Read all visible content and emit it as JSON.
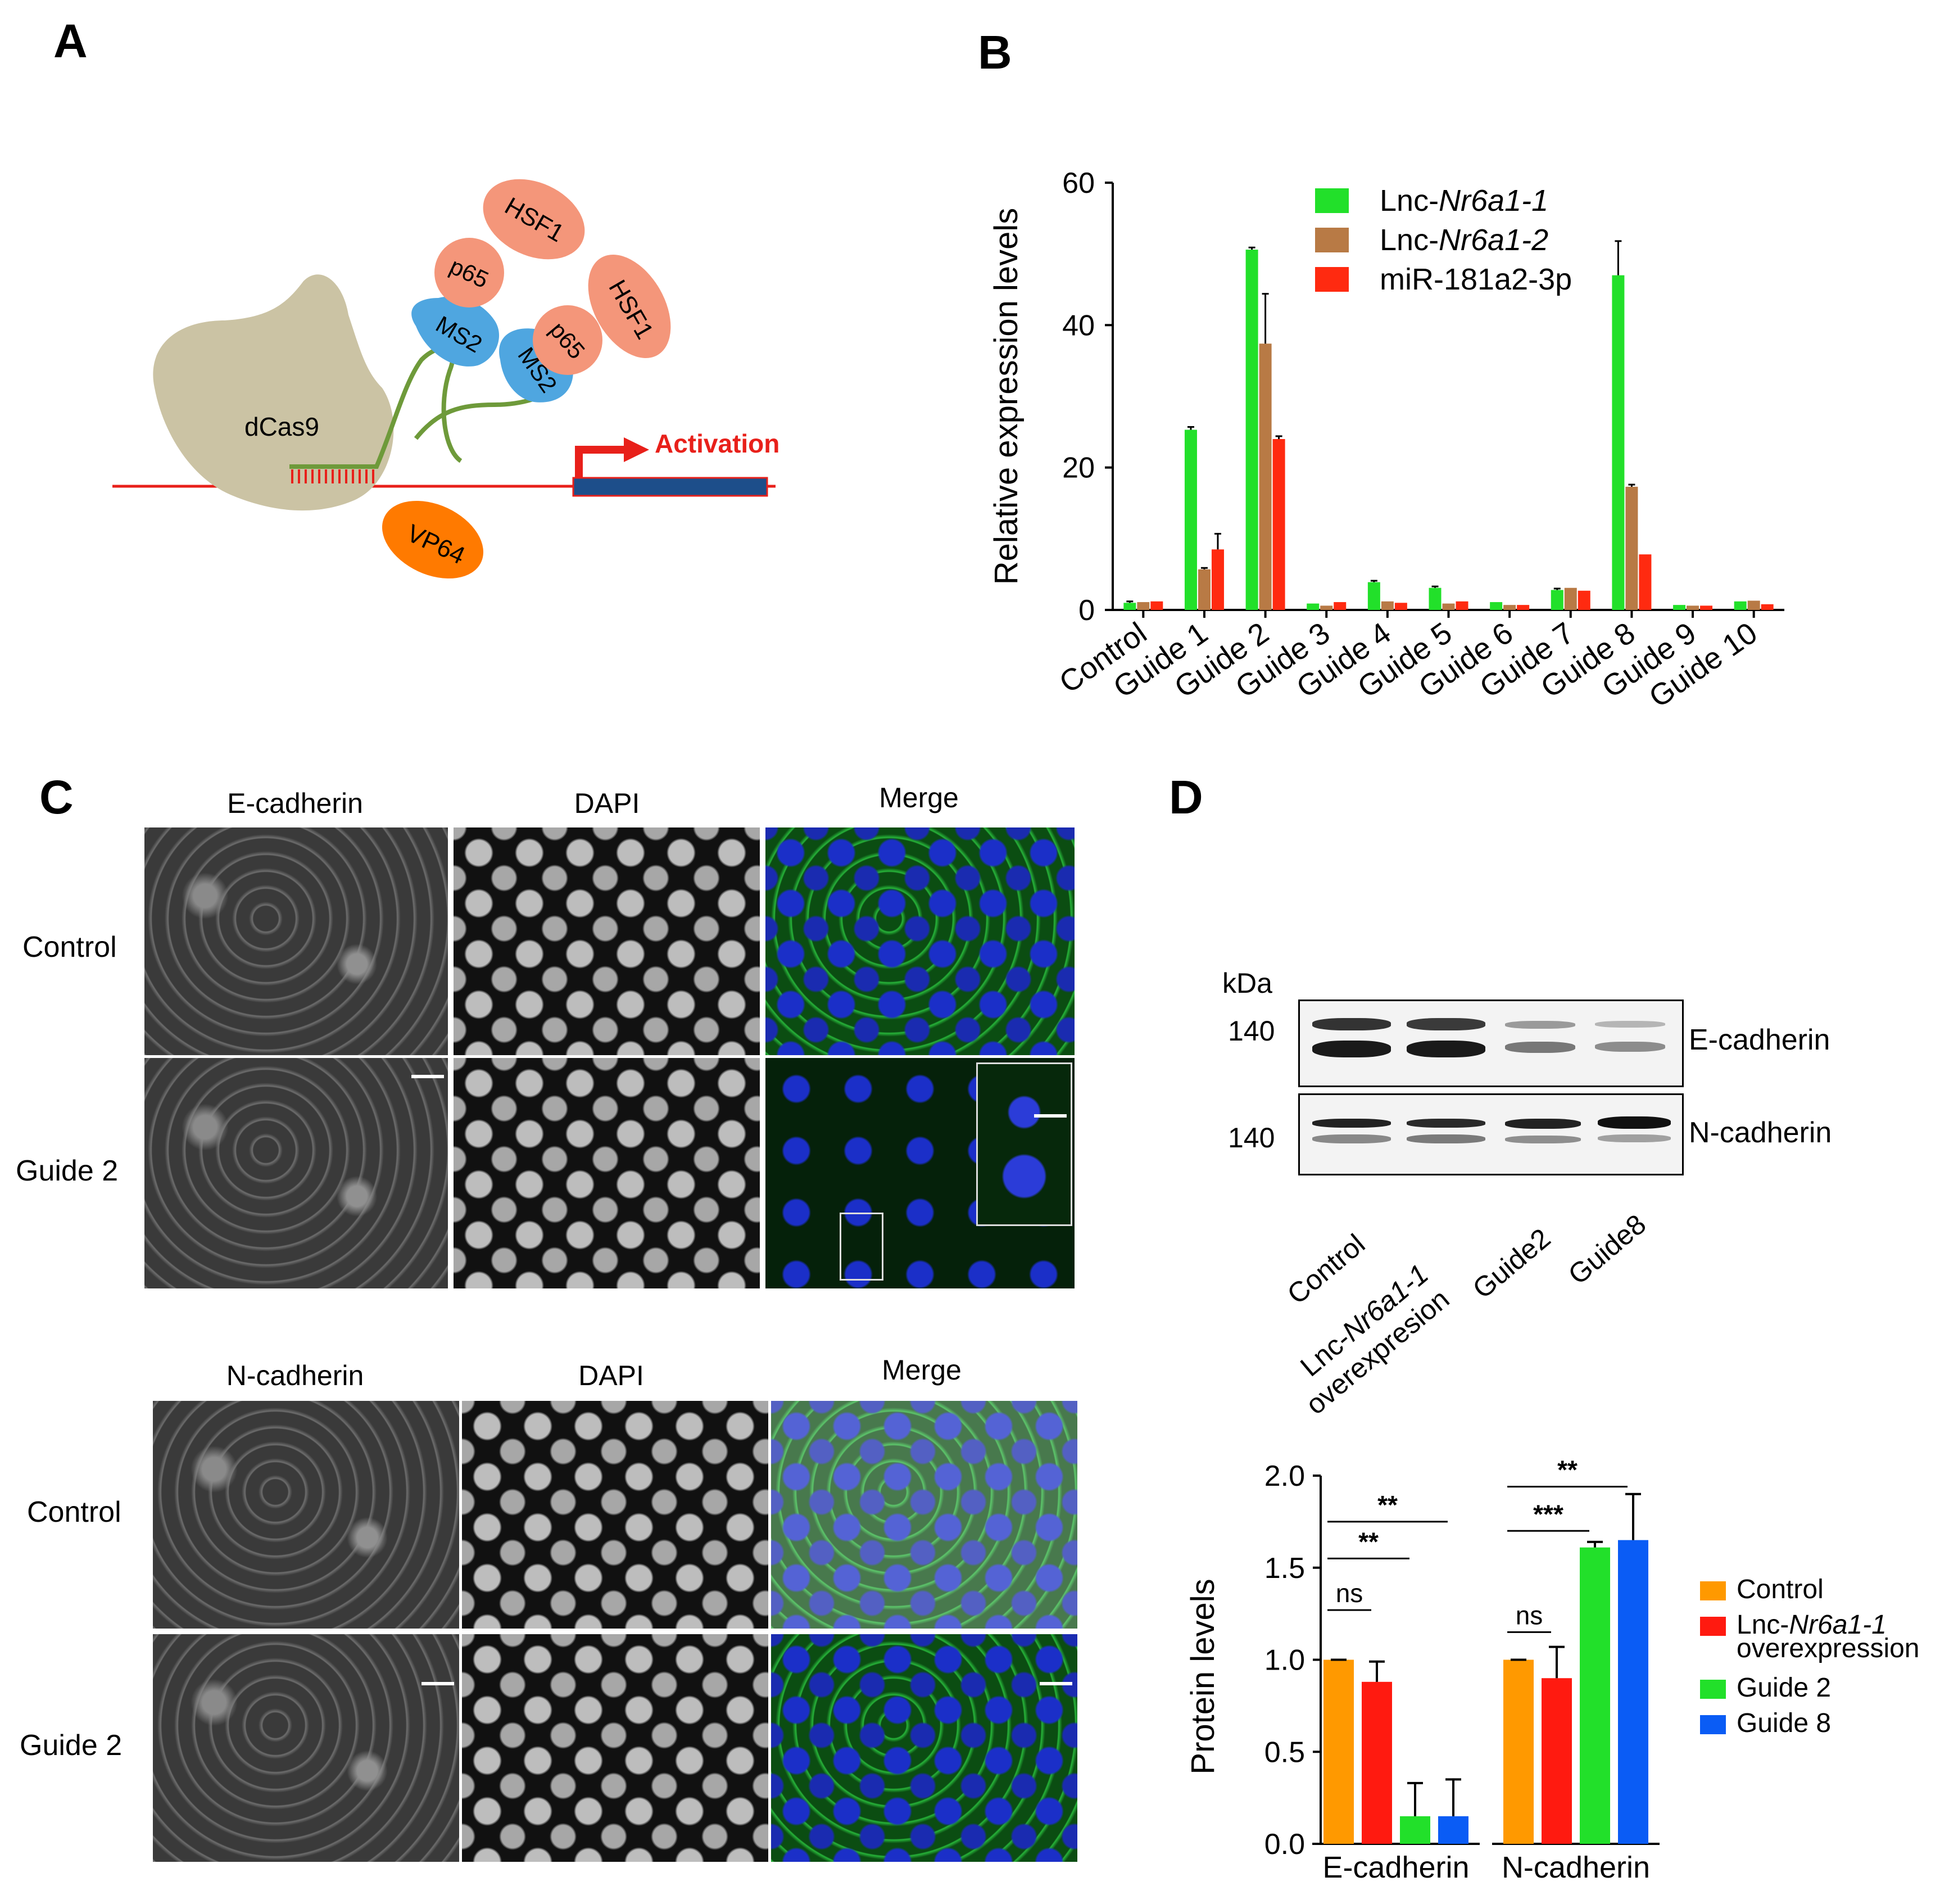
{
  "panels": {
    "a": "A",
    "b": "B",
    "c": "C",
    "d": "D"
  },
  "panel_a": {
    "dcas9": "dCas9",
    "vp64": "VP64",
    "hsf1_left": "HSF1",
    "hsf1_right": "HSF1",
    "p65_left": "p65",
    "p65_right": "p65",
    "ms2_left": "MS2",
    "ms2_right": "MS2",
    "activation": "Activation"
  },
  "panel_c": {
    "top_headers": [
      "E-cadherin",
      "DAPI",
      "Merge"
    ],
    "bottom_headers": [
      "N-cadherin",
      "DAPI",
      "Merge"
    ],
    "top_rows": [
      "Control",
      "Guide 2"
    ],
    "bottom_rows": [
      "Control",
      "Guide 2"
    ]
  },
  "panel_d_blot": {
    "kda": "kDa",
    "marker_top": "140",
    "marker_bottom": "140",
    "label_top": "E-cadherin",
    "label_bottom": "N-cadherin",
    "lanes": [
      "Control",
      "Lnc-Nr6a1-1 overexpresion",
      "Guide2",
      "Guide8"
    ],
    "lane2_line1_prefix": "Lnc-",
    "lane2_line1_italic": "Nr6a1-1",
    "lane2_line2": "overexpresion"
  },
  "colors": {
    "green": "#22e02a",
    "brown": "#b87a45",
    "red": "#ff2a10",
    "orange": "#ff9900",
    "red_d": "#ff1a10",
    "green_d": "#22e02a",
    "blue_d": "#0a5cf5",
    "salmon": "#f4967a",
    "ms2_blue": "#4fa6e0",
    "dcas9_tan": "#cbc3a4",
    "vp64_orange": "#ff7a00"
  },
  "chart_data": [
    {
      "type": "bar",
      "ylabel": "Relative expression levels",
      "ylim": [
        0,
        60
      ],
      "yticks": [
        0,
        20,
        40,
        60
      ],
      "categories": [
        "Control",
        "Guide 1",
        "Guide 2",
        "Guide 3",
        "Guide 4",
        "Guide 5",
        "Guide 6",
        "Guide 7",
        "Guide 8",
        "Guide 9",
        "Guide 10"
      ],
      "legend_placement": "top-right",
      "series": [
        {
          "name": "Lnc-Nr6a1-1",
          "name_prefix": "Lnc-",
          "name_italic": "Nr6a1-1",
          "color": "#22e02a",
          "values": [
            1.0,
            25.3,
            50.6,
            0.9,
            3.9,
            3.1,
            1.1,
            2.8,
            47.0,
            0.7,
            1.2
          ],
          "errors": [
            0.2,
            0.4,
            0.3,
            0.1,
            0.2,
            0.2,
            0.1,
            0.2,
            4.8,
            0.1,
            0.1
          ]
        },
        {
          "name": "Lnc-Nr6a1-2",
          "name_prefix": "Lnc-",
          "name_italic": "Nr6a1-2",
          "color": "#b87a45",
          "values": [
            1.1,
            5.7,
            37.4,
            0.6,
            1.2,
            0.9,
            0.7,
            3.1,
            17.3,
            0.6,
            1.3
          ],
          "errors": [
            0.1,
            0.2,
            7.0,
            0.1,
            0.1,
            0.1,
            0.1,
            0.1,
            0.3,
            0.1,
            0.1
          ]
        },
        {
          "name": "miR-181a2-3p",
          "name_prefix": "miR-181a2-3p",
          "name_italic": "",
          "color": "#ff2a10",
          "values": [
            1.2,
            8.5,
            24.0,
            1.1,
            1.0,
            1.2,
            0.7,
            2.7,
            7.8,
            0.6,
            0.8
          ],
          "errors": [
            0.1,
            2.2,
            0.4,
            0.1,
            0.1,
            0.1,
            0.1,
            0.1,
            0.1,
            0.1,
            0.1
          ]
        }
      ]
    },
    {
      "type": "bar",
      "ylabel": "Protein levels",
      "ylim": [
        0,
        2.0
      ],
      "yticks": [
        "0.0",
        "0.5",
        "1.0",
        "1.5",
        "2.0"
      ],
      "categories": [
        "E-cadherin",
        "N-cadherin"
      ],
      "legend_placement": "right",
      "series": [
        {
          "name": "Control",
          "color": "#ff9900",
          "values": [
            1.0,
            1.0
          ],
          "errors": [
            0.0,
            0.0
          ]
        },
        {
          "name": "Lnc-Nr6a1-1 overexpression",
          "name_prefix": "Lnc-",
          "name_italic": "Nr6a1-1",
          "name_line2": "overexpression",
          "color": "#ff1a10",
          "values": [
            0.88,
            0.9
          ],
          "errors": [
            0.11,
            0.17
          ]
        },
        {
          "name": "Guide 2",
          "color": "#22e02a",
          "values": [
            0.15,
            1.61
          ],
          "errors": [
            0.18,
            0.03
          ]
        },
        {
          "name": "Guide 8",
          "color": "#0a5cf5",
          "values": [
            0.15,
            1.65
          ],
          "errors": [
            0.2,
            0.25
          ]
        }
      ],
      "annotations": [
        {
          "group": 0,
          "from": 0,
          "to": 1,
          "text": "ns"
        },
        {
          "group": 0,
          "from": 0,
          "to": 2,
          "text": "**"
        },
        {
          "group": 0,
          "from": 0,
          "to": 3,
          "text": "**"
        },
        {
          "group": 1,
          "from": 0,
          "to": 1,
          "text": "ns"
        },
        {
          "group": 1,
          "from": 0,
          "to": 2,
          "text": "***"
        },
        {
          "group": 1,
          "from": 0,
          "to": 3,
          "text": "**"
        }
      ]
    }
  ]
}
